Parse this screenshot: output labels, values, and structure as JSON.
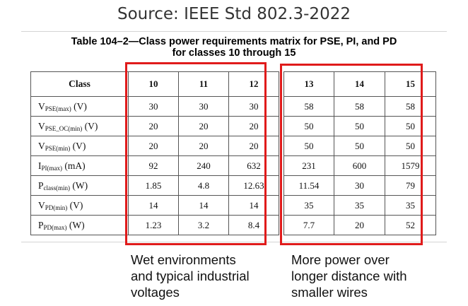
{
  "source_text": "Source: IEEE Std 802.3-2022",
  "caption": {
    "line1": "Table 104–2—Class power requirements matrix for PSE, PI, and PD",
    "line2": "for classes 10 through 15"
  },
  "table": {
    "header": {
      "param": "Class",
      "classes": [
        "10",
        "11",
        "12",
        "13",
        "14",
        "15"
      ]
    },
    "rows": [
      {
        "sym": "V",
        "sub": "PSE(max)",
        "unit": " (V)",
        "values": [
          "30",
          "30",
          "30",
          "58",
          "58",
          "58"
        ]
      },
      {
        "sym": "V",
        "sub": "PSE_OC(min)",
        "unit": " (V)",
        "values": [
          "20",
          "20",
          "20",
          "50",
          "50",
          "50"
        ]
      },
      {
        "sym": "V",
        "sub": "PSE(min)",
        "unit": " (V)",
        "values": [
          "20",
          "20",
          "20",
          "50",
          "50",
          "50"
        ]
      },
      {
        "sym": "I",
        "sub": "PI(max)",
        "unit": " (mA)",
        "values": [
          "92",
          "240",
          "632",
          "231",
          "600",
          "1579"
        ]
      },
      {
        "sym": "P",
        "sub": "class(min)",
        "unit": " (W)",
        "values": [
          "1.85",
          "4.8",
          "12.63",
          "11.54",
          "30",
          "79"
        ]
      },
      {
        "sym": "V",
        "sub": "PD(min)",
        "unit": " (V)",
        "values": [
          "14",
          "14",
          "14",
          "35",
          "35",
          "35"
        ]
      },
      {
        "sym": "P",
        "sub": "PD(max)",
        "unit": " (W)",
        "values": [
          "1.23",
          "3.2",
          "8.4",
          "7.7",
          "20",
          "52"
        ]
      }
    ]
  },
  "annotations": {
    "left": [
      "Wet environments",
      "and typical industrial",
      "voltages"
    ],
    "right": [
      "More power over",
      "longer distance with",
      "smaller wires"
    ]
  },
  "colors": {
    "highlight_box": "#e01b1b"
  }
}
